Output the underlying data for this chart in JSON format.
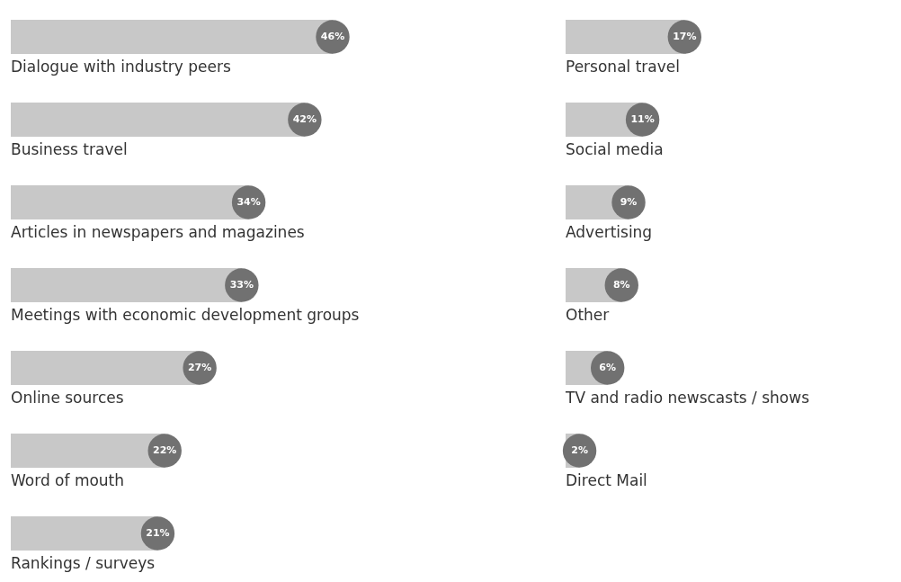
{
  "chart_data": [
    {
      "type": "bar",
      "orientation": "horizontal",
      "color": "#c8c8c8",
      "categories": [
        "Dialogue with industry peers",
        "Business travel",
        "Articles in newspapers and magazines",
        "Meetings with economic development groups",
        "Online sources",
        "Word of mouth",
        "Rankings / surveys"
      ],
      "values": [
        46,
        42,
        34,
        33,
        27,
        22,
        21
      ],
      "value_labels": [
        "46%",
        "42%",
        "34%",
        "33%",
        "27%",
        "22%",
        "21%"
      ]
    },
    {
      "type": "bar",
      "orientation": "horizontal",
      "color": "#c8c8c8",
      "categories": [
        "Personal travel",
        "Social media",
        "Advertising",
        "Other",
        "TV and radio newscasts / shows",
        "Direct Mail"
      ],
      "values": [
        17,
        11,
        9,
        8,
        6,
        2
      ],
      "value_labels": [
        "17%",
        "11%",
        "9%",
        "8%",
        "6%",
        "2%"
      ]
    }
  ]
}
